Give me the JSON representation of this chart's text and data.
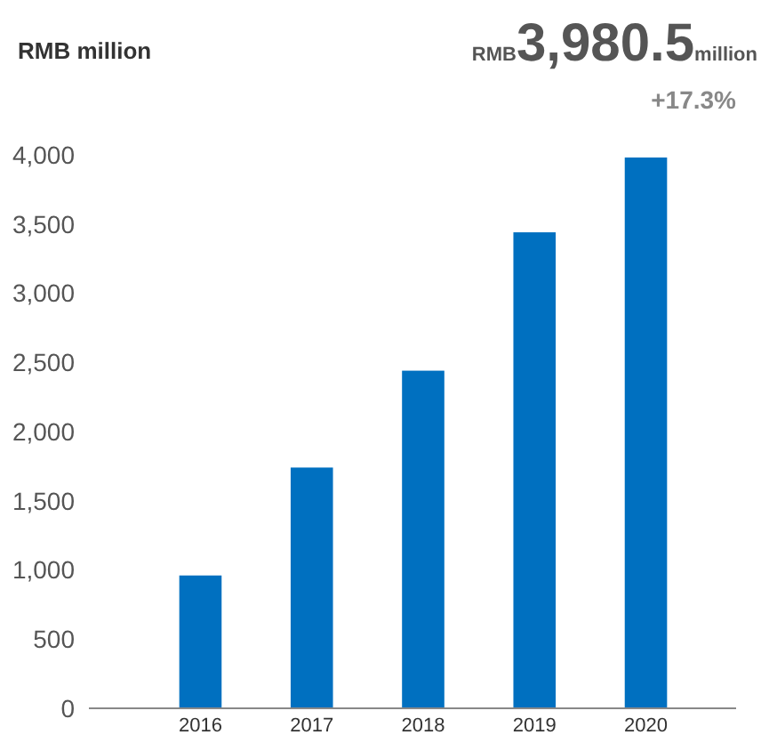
{
  "chart_data": {
    "type": "bar",
    "ylabel": "RMB million",
    "annotations": [
      "RMB",
      "3,980.5",
      "million",
      "+17.3%"
    ],
    "categories": [
      "2016",
      "2017",
      "2018",
      "2019",
      "2020"
    ],
    "values": [
      960,
      1740,
      2440,
      3440,
      3980.5
    ],
    "color": "#0070c0",
    "ylim": [
      0,
      4000
    ],
    "yticks": [
      0,
      500,
      {
        "value": 1000,
        "label": "1,000"
      },
      {
        "value": 1500,
        "label": "1,500"
      },
      {
        "value": 2000,
        "label": "2,000"
      },
      {
        "value": 2500,
        "label": "2,500"
      },
      {
        "value": 3000,
        "label": "3,000"
      },
      {
        "value": 3500,
        "label": "3,500"
      },
      {
        "value": 4000,
        "label": "4,000"
      }
    ],
    "grid": false
  }
}
